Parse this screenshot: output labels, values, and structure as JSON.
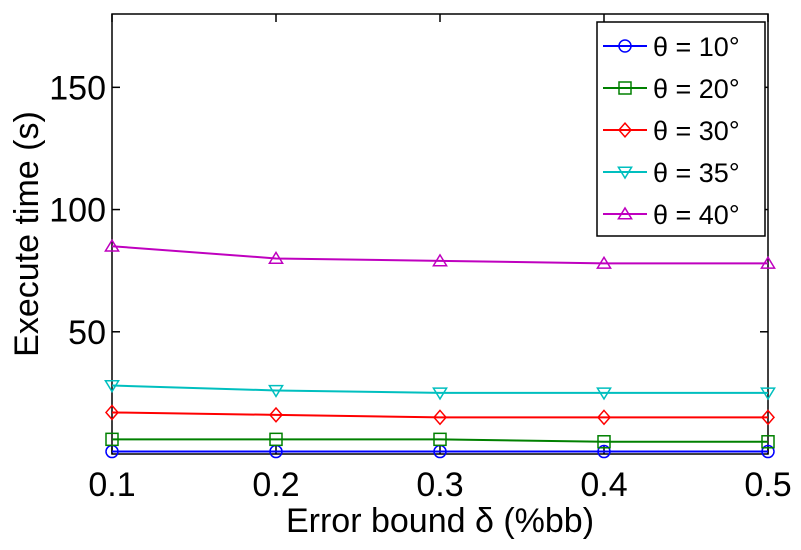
{
  "chart_data": {
    "type": "line",
    "title": "",
    "xlabel": "Error bound δ (%bb)",
    "ylabel": "Execute time (s)",
    "x": [
      0.1,
      0.2,
      0.3,
      0.4,
      0.5
    ],
    "x_tick_labels": [
      "0.1",
      "0.2",
      "0.3",
      "0.4",
      "0.5"
    ],
    "y_ticks": [
      50,
      100,
      150
    ],
    "y_tick_labels": [
      "50",
      "100",
      "150"
    ],
    "xlim": [
      0.1,
      0.5
    ],
    "ylim": [
      0,
      180
    ],
    "grid": false,
    "legend_position": "top-right",
    "series": [
      {
        "name": "θ = 10°",
        "color": "#0000ff",
        "marker": "circle",
        "values": [
          1,
          1,
          1,
          1,
          1
        ]
      },
      {
        "name": "θ = 20°",
        "color": "#008000",
        "marker": "square",
        "values": [
          6,
          6,
          6,
          5,
          5
        ]
      },
      {
        "name": "θ = 30°",
        "color": "#ff0000",
        "marker": "diamond",
        "values": [
          17,
          16,
          15,
          15,
          15
        ]
      },
      {
        "name": "θ = 35°",
        "color": "#00bfbf",
        "marker": "triangle-down",
        "values": [
          28,
          26,
          25,
          25,
          25
        ]
      },
      {
        "name": "θ = 40°",
        "color": "#bf00bf",
        "marker": "triangle-up",
        "values": [
          85,
          80,
          79,
          78,
          78
        ]
      }
    ]
  }
}
